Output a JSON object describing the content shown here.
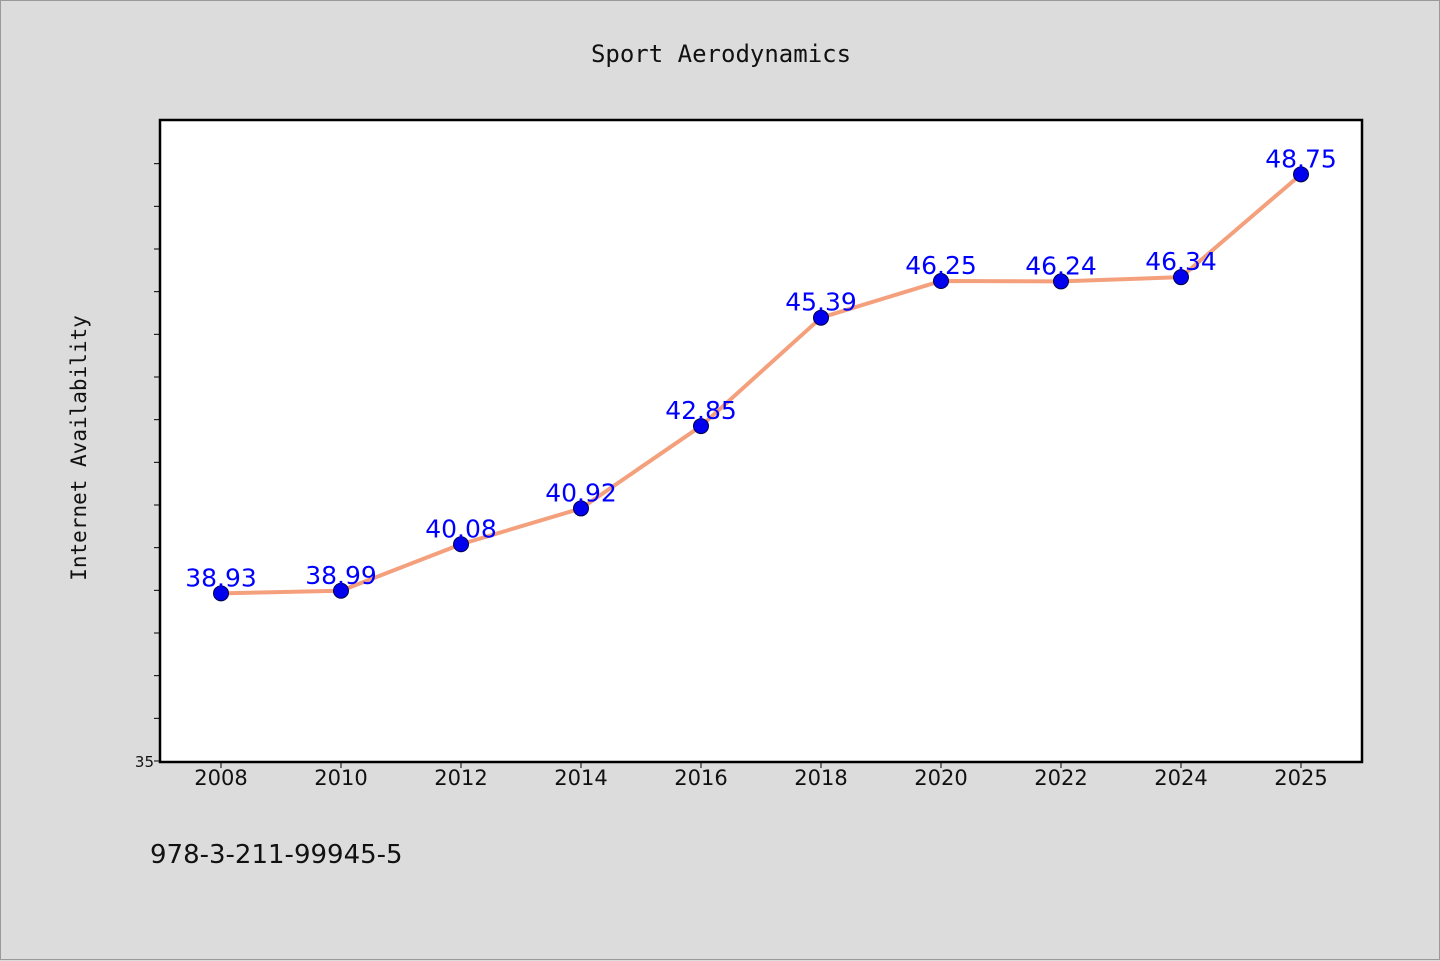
{
  "chart_data": {
    "type": "line",
    "title": "Sport Aerodynamics",
    "ylabel": "Internet Availability",
    "xlabel": "",
    "categories": [
      "2008",
      "2010",
      "2012",
      "2014",
      "2016",
      "2018",
      "2020",
      "2022",
      "2024",
      "2025"
    ],
    "series": [
      {
        "values": [
          38.93,
          38.99,
          40.08,
          40.92,
          42.85,
          45.39,
          46.25,
          46.24,
          46.34,
          48.75
        ],
        "data_labels": [
          "38.93",
          "38.99",
          "40.08",
          "40.92",
          "42.85",
          "45.39",
          "46.25",
          "46.24",
          "46.34",
          "48.75"
        ]
      }
    ],
    "ylim": [
      35,
      50
    ],
    "y_tick_labels": [
      "35"
    ],
    "grid": false,
    "line_color": "#f4a07c",
    "marker_color": "#0000ee",
    "label_color": "#0000ff"
  },
  "footer_text": "978-3-211-99945-5"
}
